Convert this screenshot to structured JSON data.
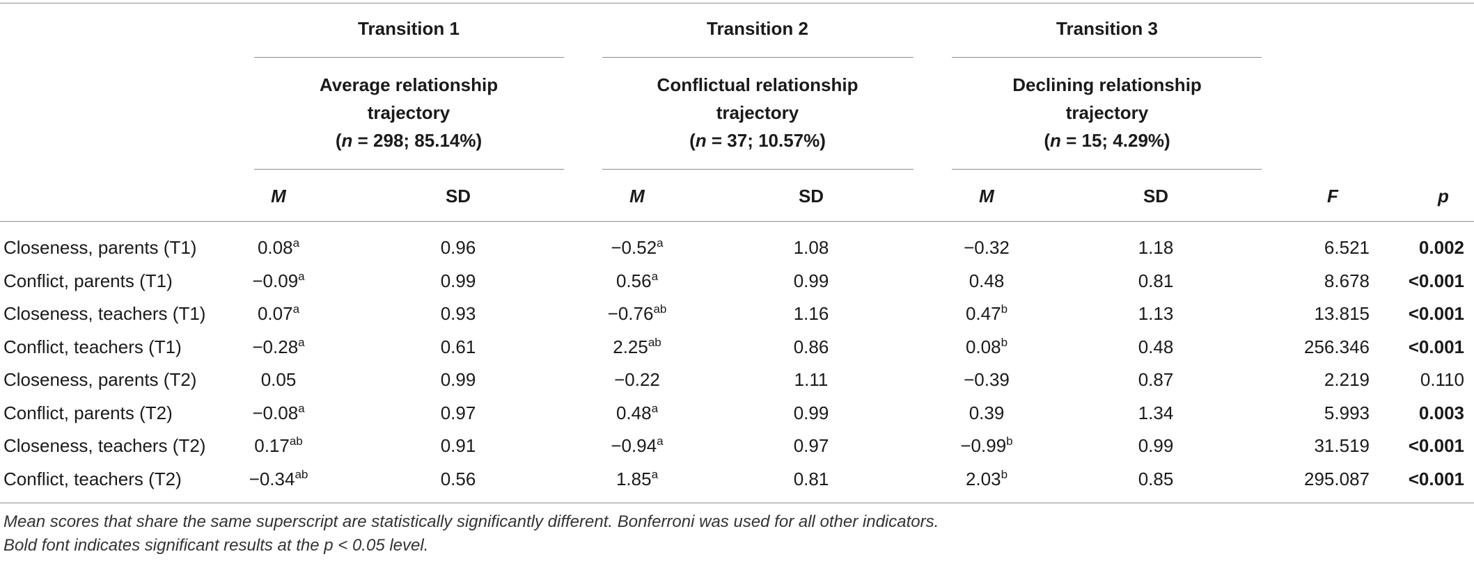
{
  "header": {
    "transitions": [
      {
        "label": "Transition 1",
        "trajectory_line1": "Average relationship",
        "trajectory_line2": "trajectory",
        "n_prefix": "(",
        "n_label": "n",
        "n_value": " = 298; 85.14%)"
      },
      {
        "label": "Transition 2",
        "trajectory_line1": "Conflictual relationship",
        "trajectory_line2": "trajectory",
        "n_prefix": "(",
        "n_label": "n",
        "n_value": " = 37; 10.57%)"
      },
      {
        "label": "Transition 3",
        "trajectory_line1": "Declining relationship",
        "trajectory_line2": "trajectory",
        "n_prefix": "(",
        "n_label": "n",
        "n_value": " = 15; 4.29%)"
      }
    ],
    "col_M": "M",
    "col_SD": "SD",
    "col_F": "F",
    "col_p": "p"
  },
  "rows": [
    {
      "label": "Closeness, parents (T1)",
      "m1": "0.08",
      "s1": "a",
      "sd1": "0.96",
      "m2": "−0.52",
      "s2": "a",
      "sd2": "1.08",
      "m3": "−0.32",
      "s3": "",
      "sd3": "1.18",
      "F": "6.521",
      "p": "0.002",
      "p_bold": true
    },
    {
      "label": "Conflict, parents (T1)",
      "m1": "−0.09",
      "s1": "a",
      "sd1": "0.99",
      "m2": "0.56",
      "s2": "a",
      "sd2": "0.99",
      "m3": "0.48",
      "s3": "",
      "sd3": "0.81",
      "F": "8.678",
      "p": "<0.001",
      "p_bold": true
    },
    {
      "label": "Closeness, teachers (T1)",
      "m1": "0.07",
      "s1": "a",
      "sd1": "0.93",
      "m2": "−0.76",
      "s2": "ab",
      "sd2": "1.16",
      "m3": "0.47",
      "s3": "b",
      "sd3": "1.13",
      "F": "13.815",
      "p": "<0.001",
      "p_bold": true
    },
    {
      "label": "Conflict, teachers (T1)",
      "m1": "−0.28",
      "s1": "a",
      "sd1": "0.61",
      "m2": "2.25",
      "s2": "ab",
      "sd2": "0.86",
      "m3": "0.08",
      "s3": "b",
      "sd3": "0.48",
      "F": "256.346",
      "p": "<0.001",
      "p_bold": true
    },
    {
      "label": "Closeness, parents (T2)",
      "m1": "0.05",
      "s1": "",
      "sd1": "0.99",
      "m2": "−0.22",
      "s2": "",
      "sd2": "1.11",
      "m3": "−0.39",
      "s3": "",
      "sd3": "0.87",
      "F": "2.219",
      "p": "0.110",
      "p_bold": false
    },
    {
      "label": "Conflict, parents (T2)",
      "m1": "−0.08",
      "s1": "a",
      "sd1": "0.97",
      "m2": "0.48",
      "s2": "a",
      "sd2": "0.99",
      "m3": "0.39",
      "s3": "",
      "sd3": "1.34",
      "F": "5.993",
      "p": "0.003",
      "p_bold": true
    },
    {
      "label": "Closeness, teachers (T2)",
      "m1": "0.17",
      "s1": "ab",
      "sd1": "0.91",
      "m2": "−0.94",
      "s2": "a",
      "sd2": "0.97",
      "m3": "−0.99",
      "s3": "b",
      "sd3": "0.99",
      "F": "31.519",
      "p": "<0.001",
      "p_bold": true
    },
    {
      "label": "Conflict, teachers (T2)",
      "m1": "−0.34",
      "s1": "ab",
      "sd1": "0.56",
      "m2": "1.85",
      "s2": "a",
      "sd2": "0.81",
      "m3": "2.03",
      "s3": "b",
      "sd3": "0.85",
      "F": "295.087",
      "p": "<0.001",
      "p_bold": true
    }
  ],
  "notes": [
    "Mean scores that share the same superscript are statistically significantly different. Bonferroni was used for all other indicators.",
    "Bold font indicates significant results at the p < 0.05 level."
  ]
}
